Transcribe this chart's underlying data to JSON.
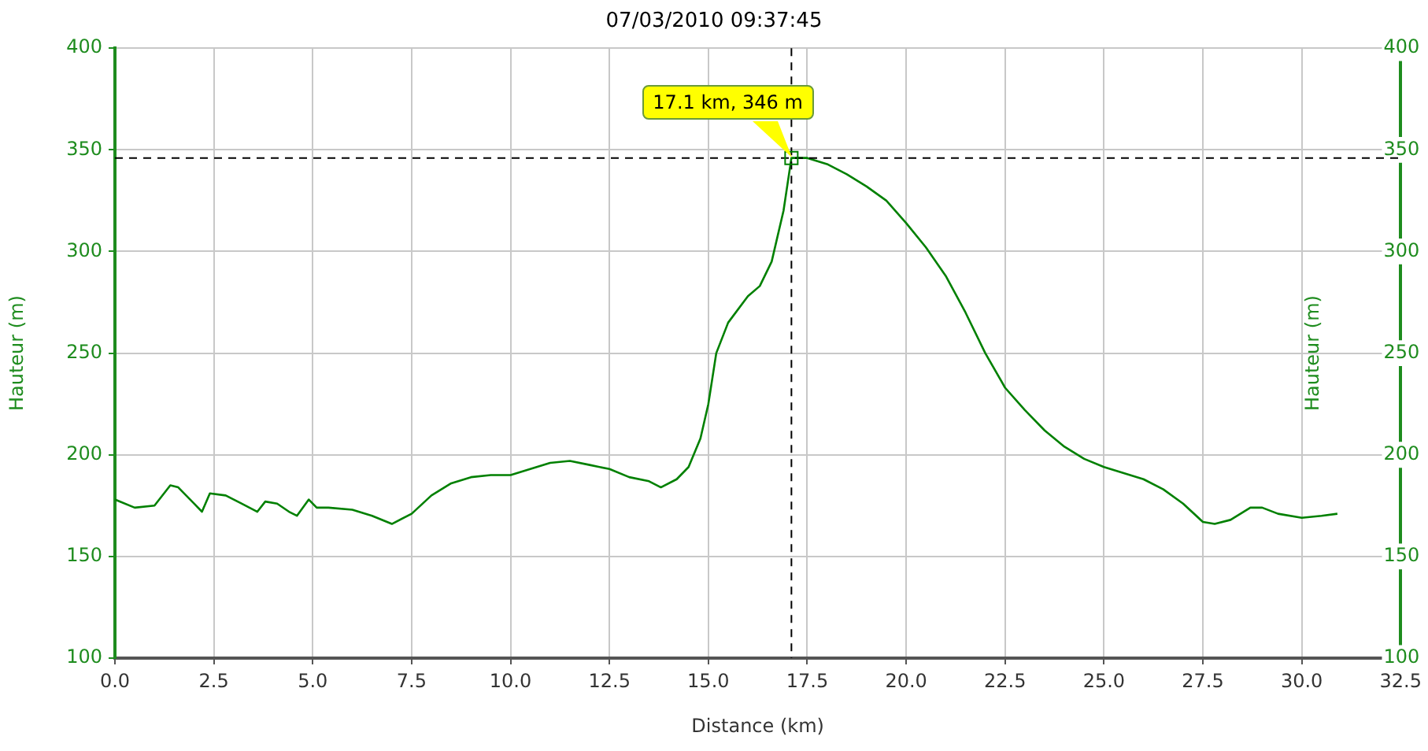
{
  "chart_data": {
    "type": "line",
    "title": "07/03/2010 09:37:45",
    "xlabel": "Distance (km)",
    "ylabel": "Hauteur (m)",
    "y2label": "Hauteur (m)",
    "x": [
      0,
      0.5,
      1.0,
      1.4,
      1.6,
      2.0,
      2.2,
      2.4,
      2.8,
      3.2,
      3.6,
      3.8,
      4.1,
      4.4,
      4.6,
      4.9,
      5.1,
      5.4,
      6.0,
      6.5,
      7.0,
      7.5,
      8.0,
      8.5,
      9.0,
      9.5,
      10.0,
      10.5,
      11.0,
      11.5,
      12.0,
      12.5,
      13.0,
      13.5,
      13.8,
      14.2,
      14.5,
      14.8,
      15.0,
      15.2,
      15.5,
      16.0,
      16.3,
      16.6,
      16.9,
      17.1,
      17.5,
      18.0,
      18.5,
      19.0,
      19.5,
      20.0,
      20.5,
      21.0,
      21.5,
      22.0,
      22.5,
      23.0,
      23.5,
      24.0,
      24.5,
      25.0,
      25.5,
      26.0,
      26.5,
      27.0,
      27.5,
      27.8,
      28.2,
      28.7,
      29.0,
      29.4,
      30.0,
      30.5,
      30.9
    ],
    "series": [
      {
        "color": "#008000",
        "values": [
          178,
          174,
          175,
          185,
          184,
          176,
          172,
          181,
          180,
          176,
          172,
          177,
          176,
          172,
          170,
          178,
          174,
          174,
          173,
          170,
          166,
          171,
          180,
          186,
          189,
          190,
          190,
          193,
          196,
          197,
          195,
          193,
          189,
          187,
          184,
          188,
          194,
          208,
          225,
          250,
          265,
          278,
          283,
          295,
          320,
          346,
          346,
          343,
          338,
          332,
          325,
          314,
          302,
          288,
          270,
          250,
          233,
          222,
          212,
          204,
          198,
          194,
          191,
          188,
          183,
          176,
          167,
          166,
          168,
          174,
          174,
          171,
          169,
          170,
          171
        ]
      }
    ],
    "xlim": [
      0,
      32.5
    ],
    "xticks": [
      {
        "value": 0,
        "label": "0.0"
      },
      {
        "value": 2.5,
        "label": "2.5"
      },
      {
        "value": 5,
        "label": "5.0"
      },
      {
        "value": 7.5,
        "label": "7.5"
      },
      {
        "value": 10,
        "label": "10.0"
      },
      {
        "value": 12.5,
        "label": "12.5"
      },
      {
        "value": 15,
        "label": "15.0"
      },
      {
        "value": 17.5,
        "label": "17.5"
      },
      {
        "value": 20,
        "label": "20.0"
      },
      {
        "value": 22.5,
        "label": "22.5"
      },
      {
        "value": 25,
        "label": "25.0"
      },
      {
        "value": 27.5,
        "label": "27.5"
      },
      {
        "value": 30,
        "label": "30.0"
      },
      {
        "value": 32.5,
        "label": "32.5"
      }
    ],
    "ylim": [
      100,
      400
    ],
    "yticks": [
      100,
      150,
      200,
      250,
      300,
      350,
      400
    ],
    "y2lim": [
      100,
      400
    ],
    "y2ticks": [
      100,
      150,
      200,
      250,
      300,
      350,
      400
    ],
    "ref_lines": [
      {
        "axis": "x",
        "value": 17.1,
        "line_style": "dashed",
        "color": "#000000"
      },
      {
        "axis": "y",
        "value": 346,
        "line_style": "dashed",
        "color": "#000000"
      }
    ],
    "annotations": [
      {
        "text": "17.1 km, 346 m",
        "x": 17.1,
        "y": 346
      }
    ],
    "grid": true,
    "legend": false,
    "marker": "none",
    "line_style": "solid"
  }
}
